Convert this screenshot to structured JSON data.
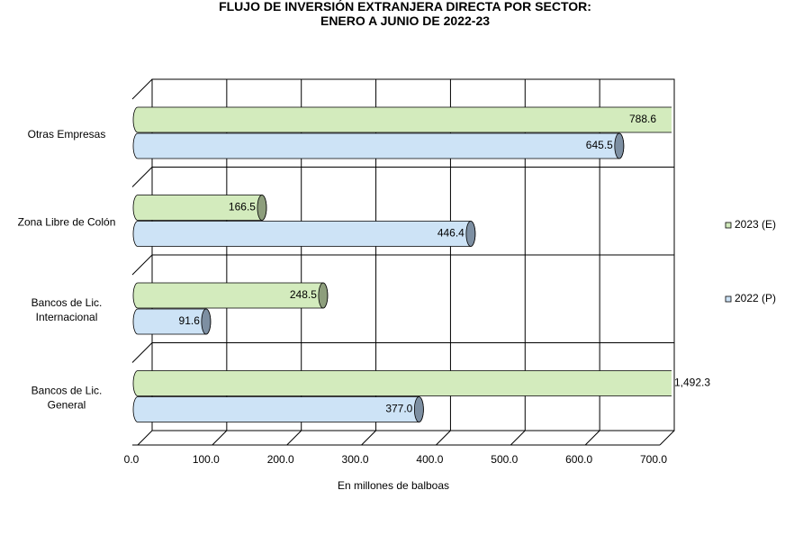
{
  "chart_data": {
    "type": "bar3d",
    "orientation": "horizontal",
    "title": "FLUJO DE INVERSIÓN EXTRANJERA DIRECTA POR SECTOR:\nENERO A JUNIO DE 2022-23",
    "x_label": "En millones de balboas",
    "categories": [
      "Otras Empresas",
      "Zona Libre de Colón",
      "Bancos de Lic.\nInternacional",
      "Bancos de Lic.\nGeneral"
    ],
    "series": [
      {
        "name": "2023 (E)",
        "color": "#d3ebbd",
        "cap": "#8d9e7c",
        "values": [
          788.6,
          166.5,
          248.5,
          1492.3
        ],
        "value_labels": [
          "788.6",
          "166.5",
          "248.5",
          "1,492.3"
        ]
      },
      {
        "name": "2022 (P)",
        "color": "#cde3f6",
        "cap": "#7d8fa2",
        "values": [
          645.5,
          446.4,
          91.6,
          377.0
        ],
        "value_labels": [
          "645.5",
          "446.4",
          "91.6",
          "377.0"
        ]
      }
    ],
    "xlim": [
      0,
      700
    ],
    "xticks": [
      {
        "value": 0,
        "label": "0.0"
      },
      {
        "value": 100,
        "label": "100.0"
      },
      {
        "value": 200,
        "label": "200.0"
      },
      {
        "value": 300,
        "label": "300.0"
      },
      {
        "value": 400,
        "label": "400.0"
      },
      {
        "value": 500,
        "label": "500.0"
      },
      {
        "value": 600,
        "label": "600.0"
      },
      {
        "value": 700,
        "label": "700.0"
      }
    ],
    "grid": true,
    "legend": "right"
  }
}
